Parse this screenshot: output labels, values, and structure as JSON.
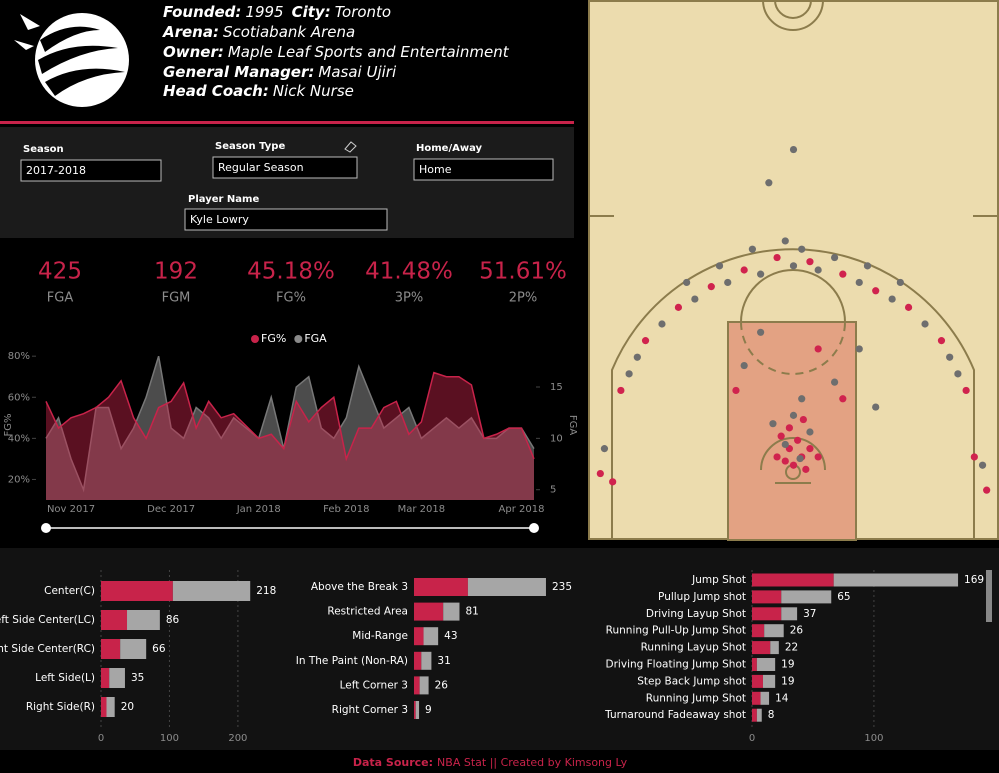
{
  "header": {
    "lines": [
      [
        {
          "label": "Founded:",
          "value": "1995"
        },
        {
          "label": "City:",
          "value": "Toronto"
        }
      ],
      [
        {
          "label": "Arena:",
          "value": "Scotiabank Arena"
        }
      ],
      [
        {
          "label": "Owner:",
          "value": "Maple Leaf Sports and Entertainment"
        }
      ],
      [
        {
          "label": "General Manager:",
          "value": "Masai Ujiri"
        }
      ],
      [
        {
          "label": "Head Coach:",
          "value": "Nick Nurse"
        }
      ]
    ]
  },
  "filters": [
    {
      "label": "Season",
      "value": "2017-2018"
    },
    {
      "label": "Season Type",
      "value": "Regular Season"
    },
    {
      "label": "Home/Away",
      "value": "Home"
    },
    {
      "label": "Player Name",
      "value": "Kyle Lowry"
    }
  ],
  "kpis": [
    {
      "value": "425",
      "label": "FGA"
    },
    {
      "value": "192",
      "label": "FGM"
    },
    {
      "value": "45.18%",
      "label": "FG%"
    },
    {
      "value": "41.48%",
      "label": "3P%"
    },
    {
      "value": "51.61%",
      "label": "2P%"
    }
  ],
  "chart_data": [
    {
      "type": "area",
      "y_label": "FG%",
      "y2_label": "FGA",
      "legend": "top",
      "categories": [
        null,
        null,
        "Nov 2017",
        null,
        null,
        null,
        null,
        null,
        null,
        null,
        "Dec 2017",
        null,
        null,
        null,
        null,
        null,
        null,
        "Jan 2018",
        null,
        null,
        null,
        null,
        null,
        null,
        "Feb 2018",
        null,
        null,
        null,
        null,
        null,
        "Mar 2018",
        null,
        null,
        null,
        null,
        null,
        null,
        null,
        "Apr 2018",
        null
      ],
      "series": [
        {
          "name": "FG%",
          "color": "#c8234a",
          "values": [
            58,
            45,
            50,
            52,
            55,
            60,
            68,
            50,
            40,
            55,
            58,
            67,
            45,
            58,
            50,
            52,
            46,
            40,
            42,
            35,
            58,
            48,
            55,
            60,
            30,
            45,
            45,
            55,
            58,
            42,
            48,
            72,
            70,
            70,
            66,
            40,
            42,
            45,
            45,
            30
          ]
        },
        {
          "name": "FGA",
          "color": "#8a8a8a",
          "axis": "y2",
          "values": [
            10,
            12,
            8,
            5,
            13,
            13,
            9,
            11,
            14,
            18,
            11,
            10,
            13,
            12,
            10,
            12,
            11,
            10,
            14,
            9,
            15,
            16,
            11,
            10,
            12,
            17,
            14,
            11,
            12,
            13,
            10,
            11,
            12,
            11,
            12,
            10,
            10,
            11,
            11,
            9
          ]
        }
      ],
      "ylim": [
        10,
        83
      ],
      "yticks": [
        {
          "value": 20,
          "label": "20%"
        },
        {
          "value": 40,
          "label": "40%"
        },
        {
          "value": 60,
          "label": "60%"
        },
        {
          "value": 80,
          "label": "80%"
        }
      ],
      "y2lim": [
        4,
        18.6
      ],
      "y2ticks": [
        5,
        10,
        15
      ]
    },
    {
      "type": "hbar",
      "categories": [
        "Center(C)",
        "Left Side Center(LC)",
        "Right Side Center(RC)",
        "Left Side(L)",
        "Right Side(R)"
      ],
      "series": [
        {
          "color": "#c8234a",
          "values": [
            105,
            38,
            28,
            12,
            8
          ]
        },
        {
          "color": "#a6a6a6",
          "values": [
            113,
            48,
            38,
            23,
            12
          ]
        }
      ],
      "totals": [
        218,
        86,
        66,
        35,
        20
      ],
      "xlim": [
        0,
        225
      ],
      "xticks": [
        0,
        100,
        200
      ],
      "grid": true
    },
    {
      "type": "hbar",
      "categories": [
        "Above the Break 3",
        "Restricted Area",
        "Mid-Range",
        "In The Paint (Non-RA)",
        "Left Corner 3",
        "Right Corner 3"
      ],
      "series": [
        {
          "color": "#c8234a",
          "values": [
            96,
            52,
            17,
            13,
            10,
            3
          ]
        },
        {
          "color": "#a6a6a6",
          "values": [
            139,
            29,
            26,
            18,
            16,
            6
          ]
        }
      ],
      "totals": [
        235,
        81,
        43,
        31,
        26,
        9
      ],
      "xlim": [
        0,
        260
      ],
      "xticks": [],
      "grid": false
    },
    {
      "type": "hbar",
      "categories": [
        "Jump Shot",
        "Pullup Jump shot",
        "Driving Layup Shot",
        "Running Pull-Up Jump Shot",
        "Running Layup Shot",
        "Driving Floating Jump Shot",
        "Step Back Jump shot",
        "Running Jump Shot",
        "Turnaround Fadeaway shot"
      ],
      "series": [
        {
          "color": "#c8234a",
          "values": [
            67,
            24,
            24,
            10,
            15,
            4,
            9,
            7,
            4
          ]
        },
        {
          "color": "#a6a6a6",
          "values": [
            102,
            41,
            13,
            16,
            7,
            15,
            10,
            7,
            4
          ]
        }
      ],
      "totals": [
        169,
        65,
        37,
        26,
        22,
        19,
        19,
        14,
        8
      ],
      "xlim": [
        0,
        187
      ],
      "xticks": [
        0,
        100
      ],
      "grid": true
    },
    {
      "type": "scatter",
      "xlim": [
        -25,
        25
      ],
      "ylim": [
        -5,
        60
      ],
      "series": [
        {
          "color": "#d0234e",
          "x": [
            0,
            1,
            -1,
            2,
            -2,
            0.5,
            -0.5,
            1.5,
            -1.5,
            3,
            2,
            -2,
            6,
            -6,
            10,
            -10,
            14,
            -14,
            18,
            -18,
            21,
            -21,
            22,
            -22,
            23.5,
            -23.5,
            6,
            -7,
            3,
            -0.5,
            1.2
          ],
          "y": [
            4,
            5,
            4.5,
            6,
            5,
            7,
            6,
            3.5,
            7.5,
            5,
            28.5,
            29,
            27,
            27.5,
            25,
            25.5,
            23,
            23,
            19,
            19,
            13,
            13,
            5,
            2,
            1,
            3,
            12,
            13,
            18,
            8.5,
            9.5
          ]
        },
        {
          "color": "#6e6e6e",
          "x": [
            0.8,
            -1,
            2,
            -2.5,
            0,
            1,
            0,
            3,
            -4,
            8,
            -8,
            12,
            -12,
            16,
            -16,
            19,
            -19,
            1,
            -1,
            5,
            -5,
            9,
            -9,
            13,
            -13,
            20,
            -20,
            23,
            -23,
            0,
            -3,
            5,
            -6,
            8,
            -4,
            10
          ],
          "y": [
            4.8,
            6.5,
            8,
            9,
            10,
            12,
            28,
            27.5,
            27,
            26,
            26,
            24,
            24,
            21,
            21,
            17,
            17,
            30,
            31,
            29,
            30,
            28,
            28,
            26,
            26,
            15,
            15,
            4,
            6,
            42,
            38,
            14,
            16,
            18,
            20,
            11
          ]
        }
      ]
    }
  ],
  "footer": {
    "label": "Data Source:",
    "text": "NBA Stat || Created by Kimsong Ly"
  }
}
